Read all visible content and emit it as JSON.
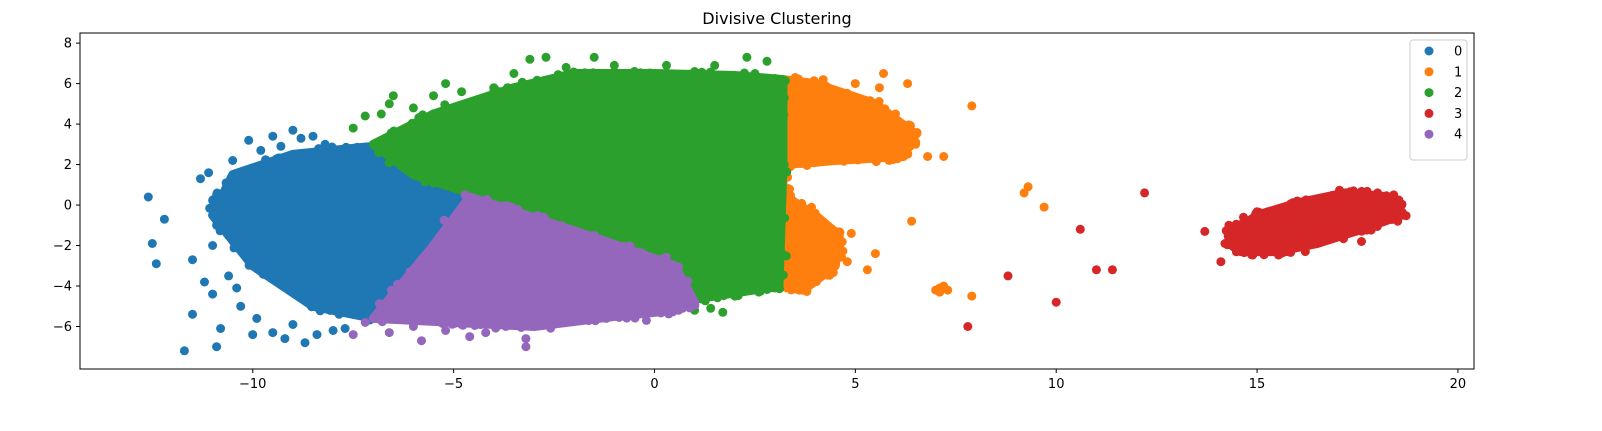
{
  "chart_data": {
    "type": "scatter",
    "title": "Divisive Clustering",
    "xlabel": "",
    "ylabel": "",
    "xlim": [
      -14.3,
      20.4
    ],
    "ylim": [
      -8.1,
      8.5
    ],
    "xticks": [
      -10,
      -5,
      0,
      5,
      10,
      15,
      20
    ],
    "yticks": [
      -6,
      -4,
      -2,
      0,
      2,
      4,
      6,
      8
    ],
    "xtick_labels": [
      "−10",
      "−5",
      "0",
      "5",
      "10",
      "15",
      "20"
    ],
    "ytick_labels": [
      "−6",
      "−4",
      "−2",
      "0",
      "2",
      "4",
      "6",
      "8"
    ],
    "grid": false,
    "legend_position": "top-right",
    "colors": [
      "#1f77b4",
      "#ff7f0e",
      "#2ca02c",
      "#d62728",
      "#9467bd"
    ],
    "series": [
      {
        "name": "0",
        "color": "#1f77b4",
        "region": [
          [
            -7.0,
            2.9
          ],
          [
            -4.3,
            0.4
          ],
          [
            -7.0,
            -5.6
          ],
          [
            -8.5,
            -5.0
          ],
          [
            -10.0,
            -3.0
          ],
          [
            -11.0,
            -0.5
          ],
          [
            -10.5,
            1.5
          ],
          [
            -9.0,
            2.5
          ]
        ],
        "points": [
          [
            -12.6,
            0.4
          ],
          [
            -12.2,
            -0.7
          ],
          [
            -12.5,
            -1.9
          ],
          [
            -12.4,
            -2.9
          ],
          [
            -11.7,
            -7.2
          ],
          [
            -11.5,
            -5.4
          ],
          [
            -11.5,
            -2.7
          ],
          [
            -11.2,
            -3.8
          ],
          [
            -11.0,
            -4.4
          ],
          [
            -10.9,
            -7.0
          ],
          [
            -10.8,
            -6.1
          ],
          [
            -10.6,
            -3.5
          ],
          [
            -10.4,
            -4.1
          ],
          [
            -10.3,
            -5.0
          ],
          [
            -10.0,
            -6.4
          ],
          [
            -9.9,
            -5.6
          ],
          [
            -9.7,
            -2.8
          ],
          [
            -9.5,
            -6.3
          ],
          [
            -9.2,
            -6.6
          ],
          [
            -9.0,
            -5.9
          ],
          [
            -8.7,
            -6.8
          ],
          [
            -8.4,
            -6.4
          ],
          [
            -8.0,
            -6.2
          ],
          [
            -7.7,
            -6.1
          ],
          [
            -11.3,
            1.3
          ],
          [
            -11.1,
            1.6
          ],
          [
            -10.9,
            0.5
          ],
          [
            -10.7,
            -0.5
          ],
          [
            -10.9,
            -1.0
          ],
          [
            -10.5,
            2.2
          ],
          [
            -10.2,
            1.5
          ],
          [
            -10.1,
            3.2
          ],
          [
            -9.8,
            2.7
          ],
          [
            -9.5,
            3.4
          ],
          [
            -9.3,
            2.9
          ],
          [
            -9.0,
            3.7
          ],
          [
            -8.8,
            3.3
          ],
          [
            -8.5,
            3.4
          ],
          [
            -8.2,
            3.0
          ],
          [
            -10.0,
            0.5
          ],
          [
            -9.8,
            -1.0
          ],
          [
            -9.3,
            -1.8
          ],
          [
            -11.0,
            -2.0
          ],
          [
            -10.6,
            -1.5
          ]
        ]
      },
      {
        "name": "1",
        "color": "#ff7f0e",
        "region": [
          [
            3.2,
            6.2
          ],
          [
            4.0,
            6.0
          ],
          [
            5.5,
            5.0
          ],
          [
            6.5,
            3.5
          ],
          [
            6.2,
            2.4
          ],
          [
            4.5,
            2.2
          ],
          [
            3.2,
            2.0
          ],
          [
            3.2,
            0.5
          ],
          [
            4.0,
            -0.5
          ],
          [
            4.6,
            -1.5
          ],
          [
            4.5,
            -3.0
          ],
          [
            3.7,
            -4.2
          ],
          [
            3.1,
            -4.0
          ]
        ],
        "points": [
          [
            3.5,
            6.3
          ],
          [
            4.2,
            6.2
          ],
          [
            5.0,
            6.0
          ],
          [
            5.7,
            6.5
          ],
          [
            6.3,
            6.0
          ],
          [
            5.6,
            5.8
          ],
          [
            6.0,
            4.5
          ],
          [
            5.8,
            2.6
          ],
          [
            6.5,
            3.0
          ],
          [
            7.2,
            2.4
          ],
          [
            6.8,
            2.4
          ],
          [
            7.9,
            4.9
          ],
          [
            6.4,
            -0.8
          ],
          [
            5.5,
            -2.4
          ],
          [
            5.3,
            -3.2
          ],
          [
            4.8,
            -2.8
          ],
          [
            4.9,
            -1.4
          ],
          [
            4.5,
            -1.5
          ],
          [
            4.0,
            -0.4
          ],
          [
            3.6,
            -4.2
          ],
          [
            3.3,
            -4.1
          ],
          [
            7.0,
            -4.2
          ],
          [
            7.1,
            -4.1
          ],
          [
            7.2,
            -4.0
          ],
          [
            7.3,
            -4.2
          ],
          [
            7.1,
            -4.3
          ],
          [
            7.9,
            -4.5
          ],
          [
            9.2,
            0.6
          ],
          [
            9.3,
            0.9
          ],
          [
            9.7,
            -0.1
          ]
        ]
      },
      {
        "name": "2",
        "color": "#2ca02c",
        "region": [
          [
            -7.0,
            3.0
          ],
          [
            -5.5,
            4.5
          ],
          [
            -3.5,
            5.8
          ],
          [
            -2.0,
            6.5
          ],
          [
            0.0,
            6.5
          ],
          [
            2.0,
            6.4
          ],
          [
            3.2,
            6.2
          ],
          [
            3.2,
            2.0
          ],
          [
            3.1,
            -4.0
          ],
          [
            1.5,
            -4.5
          ],
          [
            0.5,
            -4.8
          ],
          [
            -4.3,
            0.4
          ],
          [
            -6.0,
            1.5
          ]
        ],
        "points": [
          [
            -7.5,
            3.8
          ],
          [
            -7.2,
            4.4
          ],
          [
            -6.8,
            4.5
          ],
          [
            -6.6,
            5.0
          ],
          [
            -6.5,
            5.4
          ],
          [
            -6.0,
            4.8
          ],
          [
            -5.5,
            5.4
          ],
          [
            -5.2,
            6.0
          ],
          [
            -4.8,
            5.6
          ],
          [
            -4.0,
            5.8
          ],
          [
            -3.5,
            6.5
          ],
          [
            -3.1,
            7.2
          ],
          [
            -2.7,
            7.3
          ],
          [
            -2.2,
            6.8
          ],
          [
            -1.5,
            7.3
          ],
          [
            -1.0,
            6.9
          ],
          [
            -0.5,
            6.6
          ],
          [
            0.3,
            6.9
          ],
          [
            1.0,
            6.6
          ],
          [
            1.5,
            6.9
          ],
          [
            2.3,
            7.3
          ],
          [
            2.8,
            7.1
          ],
          [
            2.5,
            6.5
          ],
          [
            1.0,
            -5.2
          ],
          [
            1.4,
            -5.1
          ],
          [
            1.7,
            -5.3
          ],
          [
            0.3,
            -4.8
          ],
          [
            2.0,
            -4.5
          ],
          [
            2.6,
            -4.3
          ],
          [
            3.0,
            -4.1
          ]
        ]
      },
      {
        "name": "3",
        "color": "#d62728",
        "region": [
          [
            15.0,
            -0.5
          ],
          [
            16.0,
            0.1
          ],
          [
            17.2,
            0.6
          ],
          [
            18.3,
            0.4
          ],
          [
            18.6,
            -0.5
          ],
          [
            17.6,
            -1.2
          ],
          [
            16.5,
            -1.9
          ],
          [
            15.5,
            -2.3
          ],
          [
            14.6,
            -2.3
          ],
          [
            14.3,
            -1.5
          ]
        ],
        "points": [
          [
            12.2,
            0.6
          ],
          [
            13.7,
            -1.3
          ],
          [
            10.6,
            -1.2
          ],
          [
            11.0,
            -3.2
          ],
          [
            11.4,
            -3.2
          ],
          [
            8.8,
            -3.5
          ],
          [
            10.0,
            -4.8
          ],
          [
            7.8,
            -6.0
          ],
          [
            14.1,
            -2.8
          ],
          [
            14.3,
            -1.0
          ],
          [
            14.2,
            -1.9
          ],
          [
            14.5,
            -2.2
          ],
          [
            16.0,
            0.2
          ],
          [
            16.8,
            0.3
          ],
          [
            17.4,
            0.7
          ],
          [
            18.0,
            0.6
          ],
          [
            18.4,
            0.5
          ],
          [
            18.6,
            0.0
          ],
          [
            18.5,
            -0.8
          ],
          [
            17.6,
            -1.8
          ],
          [
            16.2,
            -2.3
          ],
          [
            15.1,
            -2.3
          ]
        ]
      },
      {
        "name": "4",
        "color": "#9467bd",
        "region": [
          [
            -7.0,
            -5.6
          ],
          [
            -5.5,
            -2.0
          ],
          [
            -4.6,
            0.4
          ],
          [
            -3.5,
            -0.3
          ],
          [
            -1.5,
            -1.6
          ],
          [
            0.5,
            -3.0
          ],
          [
            1.0,
            -4.8
          ],
          [
            0.5,
            -5.2
          ],
          [
            -1.0,
            -5.5
          ],
          [
            -3.0,
            -6.0
          ],
          [
            -5.0,
            -5.8
          ]
        ],
        "points": [
          [
            -7.5,
            -6.4
          ],
          [
            -7.2,
            -5.8
          ],
          [
            -6.6,
            -6.3
          ],
          [
            -6.0,
            -6.0
          ],
          [
            -5.8,
            -6.7
          ],
          [
            -5.2,
            -6.2
          ],
          [
            -4.8,
            -5.9
          ],
          [
            -4.6,
            -6.5
          ],
          [
            -4.2,
            -6.3
          ],
          [
            -3.7,
            -6.0
          ],
          [
            -3.2,
            -6.6
          ],
          [
            -3.2,
            -7.0
          ],
          [
            -2.8,
            -5.9
          ],
          [
            -2.3,
            -5.7
          ],
          [
            -1.7,
            -5.5
          ],
          [
            -1.2,
            -5.6
          ],
          [
            -0.5,
            -5.4
          ],
          [
            -0.2,
            -5.7
          ],
          [
            0.2,
            -5.2
          ],
          [
            0.6,
            -5.2
          ]
        ]
      }
    ]
  }
}
